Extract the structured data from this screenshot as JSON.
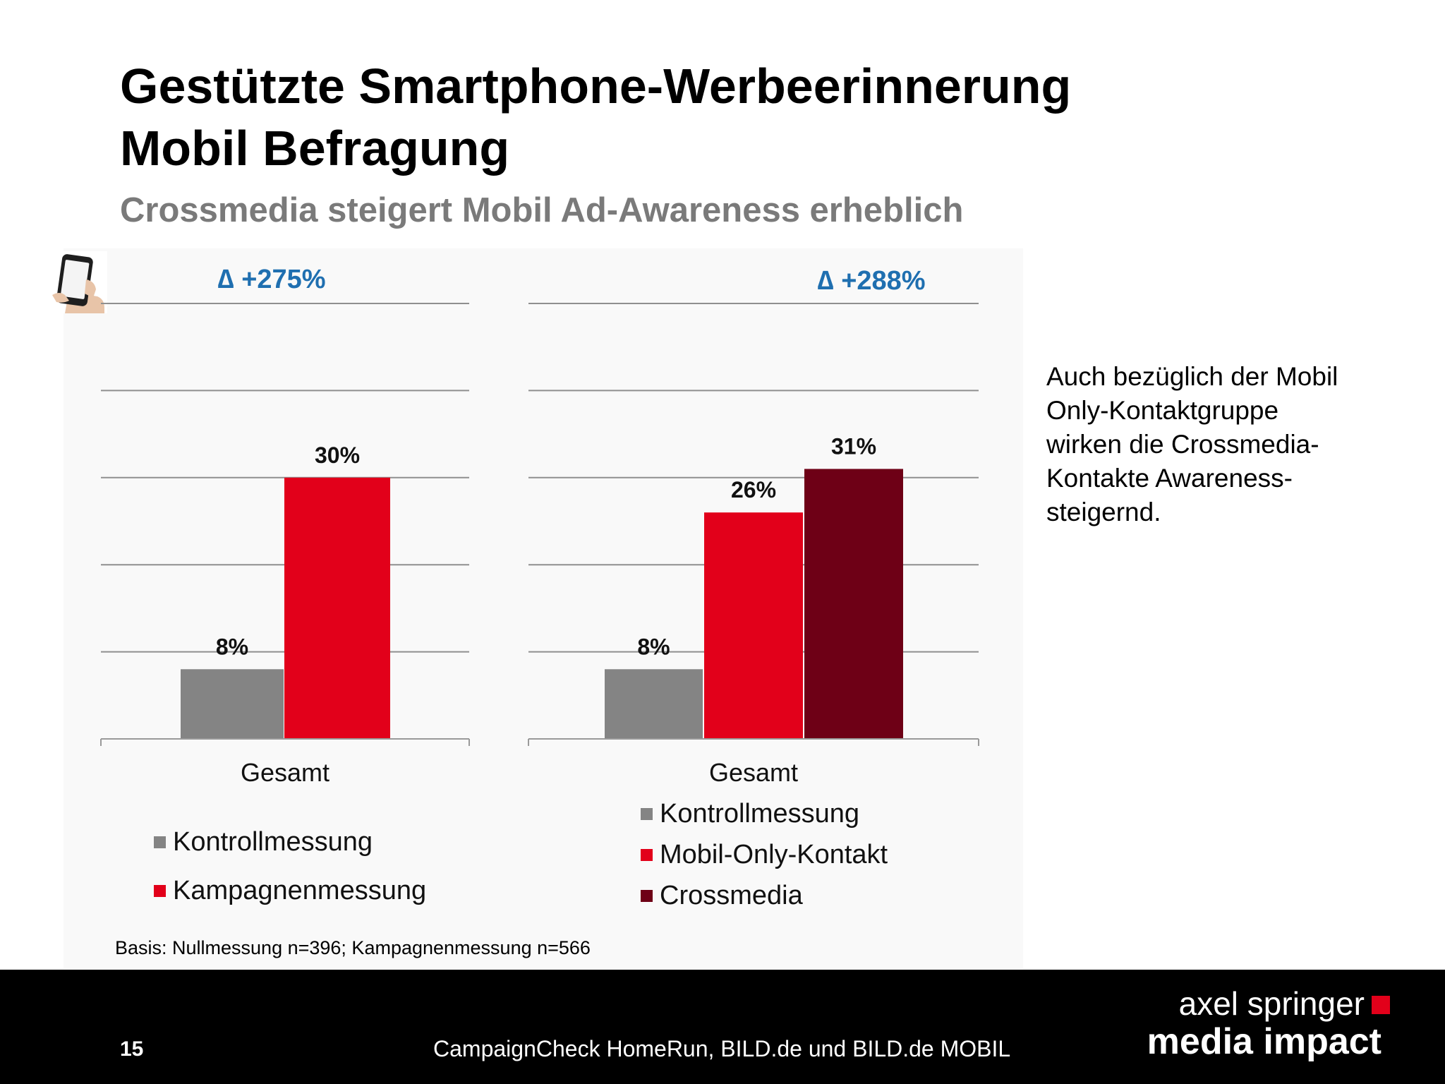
{
  "slide": {
    "title_line1": "Gestützte Smartphone-Werbeerinnerung",
    "title_line2": "Mobil Befragung",
    "subtitle": "Crossmedia steigert Mobil Ad-Awareness erheblich",
    "note": "Auch bezüglich der Mobil Only-Kontaktgruppe wirken die Crossmedia-Kontakte Awareness-steigernd.",
    "basis": "Basis: Nullmessung n=396; Kampagnenmessung n=566",
    "icon": "smartphone-in-hand-icon"
  },
  "footer": {
    "page_number": "15",
    "text": "CampaignCheck HomeRun, BILD.de und BILD.de MOBIL",
    "brand_line1": "axel springer",
    "brand_line2": "media impact",
    "brand_square_color": "#e2001a"
  },
  "colors": {
    "kontroll": "#848484",
    "kampagne": "#e2001a",
    "crossmedia": "#6e0016",
    "delta": "#1f6fb0"
  },
  "chart_data": [
    {
      "type": "bar",
      "categories": [
        "Gesamt"
      ],
      "series": [
        {
          "name": "Kontrollmessung",
          "values": [
            8
          ],
          "labels": [
            "8%"
          ]
        },
        {
          "name": "Kampagnenmessung",
          "values": [
            30
          ],
          "labels": [
            "30%"
          ]
        }
      ],
      "annotation": "∆ +275%",
      "ylim": [
        0,
        50
      ],
      "grid": true,
      "legend": "bottom"
    },
    {
      "type": "bar",
      "categories": [
        "Gesamt"
      ],
      "series": [
        {
          "name": "Kontrollmessung",
          "values": [
            8
          ],
          "labels": [
            "8%"
          ]
        },
        {
          "name": "Mobil-Only-Kontakt",
          "values": [
            26
          ],
          "labels": [
            "26%"
          ]
        },
        {
          "name": "Crossmedia",
          "values": [
            31
          ],
          "labels": [
            "31%"
          ]
        }
      ],
      "annotation": "∆ +288%",
      "ylim": [
        0,
        50
      ],
      "grid": true,
      "legend": "bottom"
    }
  ]
}
